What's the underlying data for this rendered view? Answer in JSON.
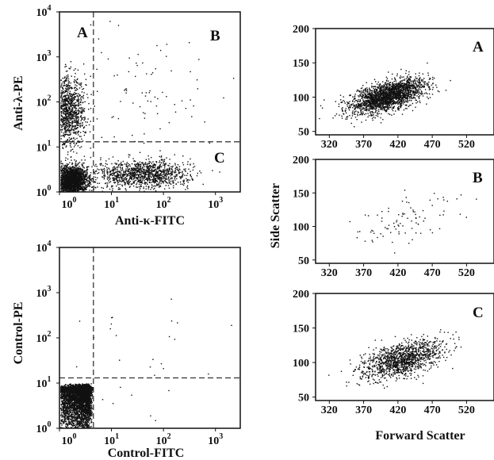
{
  "chart_data": [
    {
      "id": "flow-kappa-lambda",
      "type": "scatter",
      "xlabel": "Anti-κ-FITC",
      "ylabel": "Anti-λ-PE",
      "xscale": "log",
      "yscale": "log",
      "xlim": [
        1,
        3000
      ],
      "ylim": [
        1,
        10000
      ],
      "xticks": [
        {
          "v": 1,
          "label": "10",
          "exp": "0"
        },
        {
          "v": 10,
          "label": "10",
          "exp": "1"
        },
        {
          "v": 100,
          "label": "10",
          "exp": "2"
        },
        {
          "v": 1000,
          "label": "10",
          "exp": "3"
        }
      ],
      "yticks": [
        {
          "v": 1,
          "label": "10",
          "exp": "0"
        },
        {
          "v": 10,
          "label": "10",
          "exp": "1"
        },
        {
          "v": 100,
          "label": "10",
          "exp": "2"
        },
        {
          "v": 1000,
          "label": "10",
          "exp": "3"
        },
        {
          "v": 10000,
          "label": "10",
          "exp": "4"
        }
      ],
      "gate_x": 4.5,
      "gate_y": 13,
      "quadrants": [
        "A",
        "B",
        "C"
      ],
      "clusters": [
        {
          "name": "double-negative",
          "cx": 1.6,
          "cy": 1.8,
          "sx": 0.16,
          "sy": 0.16,
          "n": 2600
        },
        {
          "name": "lambda-positive",
          "cx": 1.4,
          "cy": 60,
          "sx": 0.17,
          "sy": 0.38,
          "n": 1200
        },
        {
          "name": "kappa-positive",
          "cx": 40,
          "cy": 2.5,
          "sx": 0.45,
          "sy": 0.16,
          "n": 1200
        },
        {
          "name": "sparse",
          "cx": 40,
          "cy": 200,
          "sx": 0.7,
          "sy": 0.8,
          "n": 90
        }
      ]
    },
    {
      "id": "flow-control",
      "type": "scatter",
      "xlabel": "Control-FITC",
      "ylabel": "Control-PE",
      "xscale": "log",
      "yscale": "log",
      "xlim": [
        1,
        3000
      ],
      "ylim": [
        1,
        10000
      ],
      "xticks": [
        {
          "v": 1,
          "label": "10",
          "exp": "0"
        },
        {
          "v": 10,
          "label": "10",
          "exp": "1"
        },
        {
          "v": 100,
          "label": "10",
          "exp": "2"
        },
        {
          "v": 1000,
          "label": "10",
          "exp": "3"
        }
      ],
      "yticks": [
        {
          "v": 1,
          "label": "10",
          "exp": "0"
        },
        {
          "v": 10,
          "label": "10",
          "exp": "1"
        },
        {
          "v": 100,
          "label": "10",
          "exp": "2"
        },
        {
          "v": 1000,
          "label": "10",
          "exp": "3"
        },
        {
          "v": 10000,
          "label": "10",
          "exp": "4"
        }
      ],
      "gate_x": 4.5,
      "gate_y": 13,
      "quadrants": [],
      "clusters": [
        {
          "name": "negative-block",
          "cx": 2.0,
          "cy": 2.6,
          "sx": 0.11,
          "sy": 0.11,
          "n": 3200,
          "clipx": [
            1,
            4.3
          ],
          "clipy": [
            1,
            10
          ]
        },
        {
          "name": "sparse",
          "cx": 30,
          "cy": 30,
          "sx": 0.8,
          "sy": 0.8,
          "n": 30
        }
      ]
    },
    {
      "id": "scatter-A",
      "type": "scatter",
      "quadrant_label": "A",
      "xlim": [
        300,
        560
      ],
      "ylim": [
        45,
        200
      ],
      "xticks": [
        320,
        370,
        420,
        470,
        520
      ],
      "yticks": [
        50,
        100,
        150,
        200
      ],
      "clusters": [
        {
          "cx": 405,
          "cy": 102,
          "sx": 27,
          "sy": 13,
          "rho": 0.6,
          "n": 2200
        }
      ]
    },
    {
      "id": "scatter-B",
      "type": "scatter",
      "quadrant_label": "B",
      "xlim": [
        300,
        560
      ],
      "ylim": [
        45,
        200
      ],
      "xticks": [
        320,
        370,
        420,
        470,
        520
      ],
      "yticks": [
        50,
        100,
        150,
        200
      ],
      "clusters": [
        {
          "cx": 430,
          "cy": 115,
          "sx": 45,
          "sy": 22,
          "rho": 0.6,
          "n": 90
        }
      ]
    },
    {
      "id": "scatter-C",
      "type": "scatter",
      "quadrant_label": "C",
      "xlim": [
        300,
        560
      ],
      "ylim": [
        45,
        200
      ],
      "xticks": [
        320,
        370,
        420,
        470,
        520
      ],
      "yticks": [
        50,
        100,
        150,
        200
      ],
      "clusters": [
        {
          "cx": 425,
          "cy": 105,
          "sx": 30,
          "sy": 14,
          "rho": 0.55,
          "n": 1300
        }
      ]
    }
  ],
  "shared_labels": {
    "ylabel": "Side Scatter",
    "xlabel": "Forward Scatter"
  }
}
